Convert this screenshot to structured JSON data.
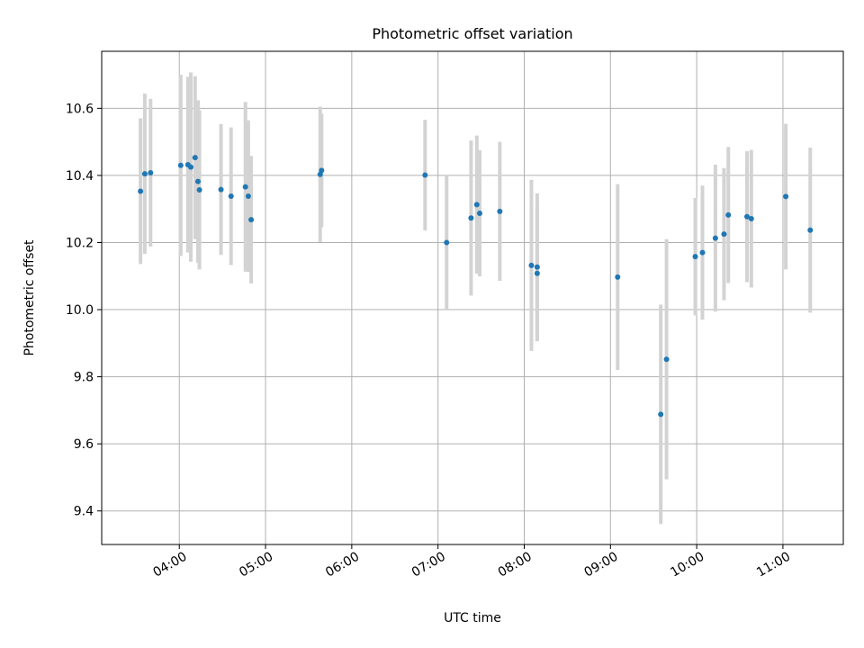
{
  "chart_data": {
    "type": "scatter",
    "title": "Photometric offset variation",
    "xlabel": "UTC time",
    "ylabel": "Photometric offset",
    "grid": true,
    "xlim": [
      "03:06",
      "11:42"
    ],
    "ylim": [
      9.3,
      10.77
    ],
    "x_ticks": [
      "04:00",
      "05:00",
      "06:00",
      "07:00",
      "08:00",
      "09:00",
      "10:00",
      "11:00"
    ],
    "y_ticks": [
      9.4,
      9.6,
      9.8,
      10.0,
      10.2,
      10.4,
      10.6
    ],
    "y_tick_labels": [
      "9.4",
      "9.6",
      "9.8",
      "10.0",
      "10.2",
      "10.4",
      "10.6"
    ],
    "colors": {
      "point": "#1f77b4",
      "errorbar": "#d3d3d3",
      "grid": "#b0b0b0"
    },
    "points": [
      {
        "x": "03:33",
        "y": 10.353,
        "err": 0.217
      },
      {
        "x": "03:36",
        "y": 10.405,
        "err": 0.239
      },
      {
        "x": "03:40",
        "y": 10.408,
        "err": 0.22
      },
      {
        "x": "04:01",
        "y": 10.43,
        "err": 0.27
      },
      {
        "x": "04:06",
        "y": 10.432,
        "err": 0.262
      },
      {
        "x": "04:08",
        "y": 10.425,
        "err": 0.282
      },
      {
        "x": "04:11",
        "y": 10.453,
        "err": 0.243
      },
      {
        "x": "04:13",
        "y": 10.382,
        "err": 0.242
      },
      {
        "x": "04:14",
        "y": 10.357,
        "err": 0.237
      },
      {
        "x": "04:29",
        "y": 10.358,
        "err": 0.195
      },
      {
        "x": "04:36",
        "y": 10.338,
        "err": 0.205
      },
      {
        "x": "04:46",
        "y": 10.366,
        "err": 0.253
      },
      {
        "x": "04:48",
        "y": 10.338,
        "err": 0.226
      },
      {
        "x": "04:50",
        "y": 10.268,
        "err": 0.19
      },
      {
        "x": "05:38",
        "y": 10.403,
        "err": 0.202
      },
      {
        "x": "05:39",
        "y": 10.415,
        "err": 0.169
      },
      {
        "x": "06:51",
        "y": 10.401,
        "err": 0.165
      },
      {
        "x": "07:06",
        "y": 10.2,
        "err": 0.2
      },
      {
        "x": "07:23",
        "y": 10.273,
        "err": 0.231
      },
      {
        "x": "07:27",
        "y": 10.313,
        "err": 0.206
      },
      {
        "x": "07:29",
        "y": 10.287,
        "err": 0.188
      },
      {
        "x": "07:43",
        "y": 10.293,
        "err": 0.207
      },
      {
        "x": "08:05",
        "y": 10.132,
        "err": 0.255
      },
      {
        "x": "08:09",
        "y": 10.108,
        "err": 0.202
      },
      {
        "x": "08:09",
        "y": 10.127,
        "err": 0.22
      },
      {
        "x": "09:05",
        "y": 10.097,
        "err": 0.277
      },
      {
        "x": "09:35",
        "y": 9.688,
        "err": 0.327
      },
      {
        "x": "09:39",
        "y": 9.852,
        "err": 0.358
      },
      {
        "x": "09:59",
        "y": 10.158,
        "err": 0.175
      },
      {
        "x": "10:04",
        "y": 10.17,
        "err": 0.2
      },
      {
        "x": "10:13",
        "y": 10.213,
        "err": 0.219
      },
      {
        "x": "10:19",
        "y": 10.225,
        "err": 0.197
      },
      {
        "x": "10:22",
        "y": 10.282,
        "err": 0.203
      },
      {
        "x": "10:35",
        "y": 10.277,
        "err": 0.195
      },
      {
        "x": "10:38",
        "y": 10.271,
        "err": 0.205
      },
      {
        "x": "11:02",
        "y": 10.337,
        "err": 0.217
      },
      {
        "x": "11:19",
        "y": 10.237,
        "err": 0.246
      }
    ]
  }
}
